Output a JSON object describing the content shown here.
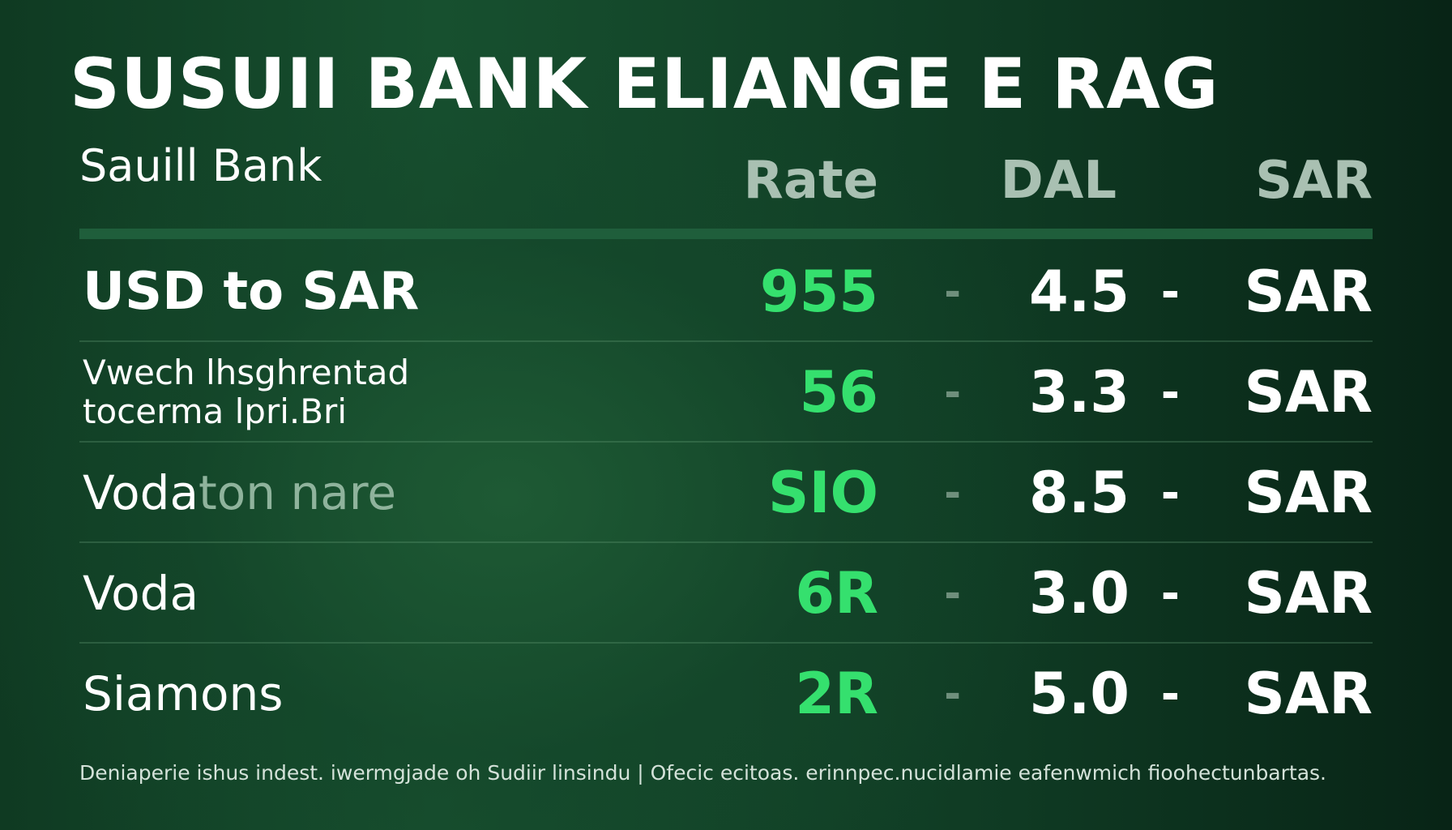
{
  "title": "SUSUII BANK ELIANGE E RAG",
  "brand": "Sauill Bank",
  "columns": {
    "rate": "Rate",
    "dal": "DAL",
    "sar": "SAR"
  },
  "rows": [
    {
      "label": "USD to SAR",
      "label_faded": "",
      "rate": "955",
      "sep1": "-",
      "value": "4.5",
      "sep2": "-",
      "currency": "SAR"
    },
    {
      "label": "Vwech lhsghrentad\ntocerma lpri.Bri",
      "label_faded": "",
      "rate": "56",
      "sep1": "-",
      "value": "3.3",
      "sep2": "-",
      "currency": "SAR"
    },
    {
      "label": "Voda",
      "label_faded": "ton nare",
      "rate": "SIO",
      "sep1": "-",
      "value": "8.5",
      "sep2": "-",
      "currency": "SAR"
    },
    {
      "label": "Voda",
      "label_faded": "",
      "rate": "6R",
      "sep1": "-",
      "value": "3.0",
      "sep2": "-",
      "currency": "SAR"
    },
    {
      "label": "Siamons",
      "label_faded": "",
      "rate": "2R",
      "sep1": "-",
      "value": "5.0",
      "sep2": "-",
      "currency": "SAR"
    }
  ],
  "footer": "Deniaperie ishus indest. iwermgjade oh Sudiir linsindu | Ofecic ecitoas. erinnpec.nucidlamie eafenwmich fioohectunbartas."
}
